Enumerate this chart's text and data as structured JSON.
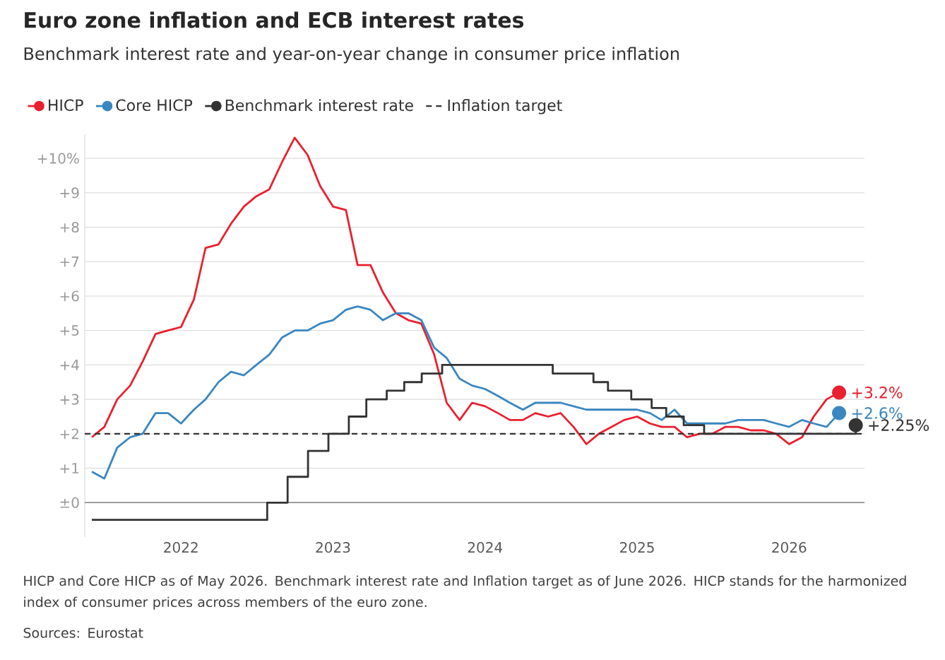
{
  "chart_data": {
    "type": "line",
    "title": "Euro zone inflation and ECB interest rates",
    "subtitle": "Benchmark interest rate and year-on-year change in consumer price inflation",
    "x": [
      "2021-06",
      "2021-07",
      "2021-08",
      "2021-09",
      "2021-10",
      "2021-11",
      "2021-12",
      "2022-01",
      "2022-02",
      "2022-03",
      "2022-04",
      "2022-05",
      "2022-06",
      "2022-07",
      "2022-08",
      "2022-09",
      "2022-10",
      "2022-11",
      "2022-12",
      "2023-01",
      "2023-02",
      "2023-03",
      "2023-04",
      "2023-05",
      "2023-06",
      "2023-07",
      "2023-08",
      "2023-09",
      "2023-10",
      "2023-11",
      "2023-12",
      "2024-01",
      "2024-02",
      "2024-03",
      "2024-04",
      "2024-05",
      "2024-06",
      "2024-07",
      "2024-08",
      "2024-09",
      "2024-10",
      "2024-11",
      "2024-12",
      "2025-01",
      "2025-02",
      "2025-03",
      "2025-04",
      "2025-05",
      "2025-06",
      "2025-07",
      "2025-08",
      "2025-09",
      "2025-10",
      "2025-11",
      "2025-12",
      "2026-01",
      "2026-02",
      "2026-03",
      "2026-04",
      "2026-05"
    ],
    "series": [
      {
        "name": "HICP",
        "color": "#e8202f",
        "values": [
          1.9,
          2.2,
          3.0,
          3.4,
          4.1,
          4.9,
          5.0,
          5.1,
          5.9,
          7.4,
          7.5,
          8.1,
          8.6,
          8.9,
          9.1,
          9.9,
          10.6,
          10.1,
          9.2,
          8.6,
          8.5,
          6.9,
          6.9,
          6.1,
          5.5,
          5.3,
          5.2,
          4.3,
          2.9,
          2.4,
          2.9,
          2.8,
          2.6,
          2.4,
          2.4,
          2.6,
          2.5,
          2.6,
          2.2,
          1.7,
          2.0,
          2.2,
          2.4,
          2.5,
          2.3,
          2.2,
          2.2,
          1.9,
          2.0,
          2.0,
          2.2,
          2.2,
          2.1,
          2.1,
          2.0,
          1.7,
          1.9,
          2.5,
          3.0,
          3.2
        ]
      },
      {
        "name": "Core HICP",
        "color": "#3a86c0",
        "values": [
          0.9,
          0.7,
          1.6,
          1.9,
          2.0,
          2.6,
          2.6,
          2.3,
          2.7,
          3.0,
          3.5,
          3.8,
          3.7,
          4.0,
          4.3,
          4.8,
          5.0,
          5.0,
          5.2,
          5.3,
          5.6,
          5.7,
          5.6,
          5.3,
          5.5,
          5.5,
          5.3,
          4.5,
          4.2,
          3.6,
          3.4,
          3.3,
          3.1,
          2.9,
          2.7,
          2.9,
          2.9,
          2.9,
          2.8,
          2.7,
          2.7,
          2.7,
          2.7,
          2.7,
          2.6,
          2.4,
          2.7,
          2.3,
          2.3,
          2.3,
          2.3,
          2.4,
          2.4,
          2.4,
          2.3,
          2.2,
          2.4,
          2.3,
          2.2,
          2.6
        ]
      },
      {
        "name": "Benchmark interest rate",
        "type": "step",
        "color": "#333333",
        "x": [
          "2021-06-01",
          "2022-07-27",
          "2022-09-14",
          "2022-11-02",
          "2022-12-21",
          "2023-02-08",
          "2023-03-22",
          "2023-05-10",
          "2023-06-21",
          "2023-08-02",
          "2023-09-20",
          "2024-06-12",
          "2024-09-18",
          "2024-10-23",
          "2024-12-18",
          "2025-02-05",
          "2025-03-12",
          "2025-04-23",
          "2025-06-11",
          "2026-06-10"
        ],
        "values": [
          -0.5,
          0,
          0.75,
          1.5,
          2.0,
          2.5,
          3.0,
          3.25,
          3.5,
          3.75,
          4.0,
          3.75,
          3.5,
          3.25,
          3.0,
          2.75,
          2.5,
          2.25,
          2.0,
          2.25
        ]
      }
    ],
    "ref_lines": [
      {
        "axis": "y",
        "value": 2,
        "label": "Inflation target",
        "color": "#333333",
        "line_style": "dashed"
      }
    ],
    "xlim": [
      "2021-05-15",
      "2026-07-01"
    ],
    "xticks": [
      {
        "value": "2022-01",
        "label": "2022"
      },
      {
        "value": "2023-01",
        "label": "2023"
      },
      {
        "value": "2024-01",
        "label": "2024"
      },
      {
        "value": "2025-01",
        "label": "2025"
      },
      {
        "value": "2026-01",
        "label": "2026"
      }
    ],
    "ylim": [
      -1,
      10.7
    ],
    "yticks": [
      {
        "value": 0,
        "label": "±0"
      },
      {
        "value": 1,
        "label": "+1"
      },
      {
        "value": 2,
        "label": "+2"
      },
      {
        "value": 3,
        "label": "+3"
      },
      {
        "value": 4,
        "label": "+4"
      },
      {
        "value": 5,
        "label": "+5"
      },
      {
        "value": 6,
        "label": "+6"
      },
      {
        "value": 7,
        "label": "+7"
      },
      {
        "value": 8,
        "label": "+8"
      },
      {
        "value": 9,
        "label": "+9"
      },
      {
        "value": 10,
        "label": "+10%"
      }
    ],
    "grid": "y",
    "legend": "top",
    "annotations": [
      {
        "text": "+3.2%",
        "x": "2026-05",
        "y": 3.2
      },
      {
        "text": "+2.6%",
        "x": "2026-05",
        "y": 2.6
      },
      {
        "text": "+2.25%",
        "x": "2026-06-10",
        "y": 2.25
      },
      "HICP and Core HICP as of May 2026. Benchmark interest rate and Inflation target as of June 2026. HICP stands for the harmonized index of consumer prices across members of the euro zone.",
      "Sources: Eurostat"
    ]
  }
}
